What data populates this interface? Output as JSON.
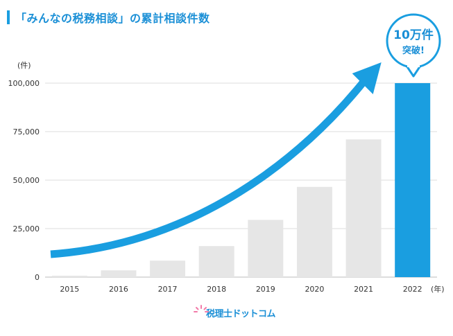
{
  "page": {
    "title": "「みんなの税務相談」の累計相談件数"
  },
  "badge": {
    "line1": "10万件",
    "line2": "突破!"
  },
  "logo": {
    "text": "税理士ドットコム"
  },
  "colors": {
    "accent": "#1a9ee0",
    "bar": "#e6e6e6",
    "highlight_bar": "#1a9ee0",
    "grid": "#dddddd"
  },
  "chart_data": {
    "type": "bar",
    "title": "「みんなの税務相談」の累計相談件数",
    "categories": [
      "2015",
      "2016",
      "2017",
      "2018",
      "2019",
      "2020",
      "2021",
      "2022"
    ],
    "values": [
      700,
      3500,
      8500,
      16000,
      29500,
      46500,
      71000,
      100000
    ],
    "highlight_index": 7,
    "y_unit": "(件)",
    "x_unit": "(年)",
    "ylim": [
      0,
      100000
    ],
    "yticks": [
      0,
      25000,
      50000,
      75000,
      100000
    ],
    "ytick_labels": [
      "0",
      "25,000",
      "50,000",
      "75,000",
      "100,000"
    ],
    "grid": true,
    "annotation": "10万件 突破!"
  }
}
